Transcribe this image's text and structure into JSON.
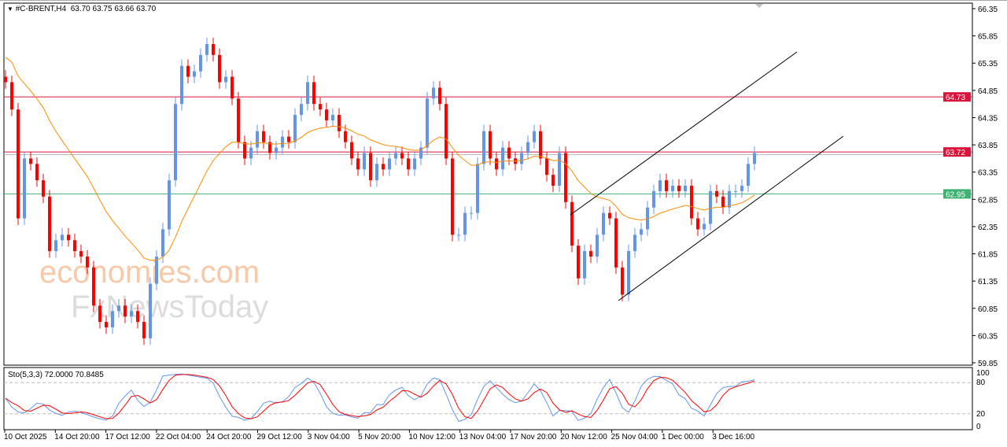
{
  "header": {
    "symbol_line": "#C-BRENT,H4  63.70 63.75 63.66 63.70",
    "dropdown_icon": "triangle-down-icon"
  },
  "watermark": {
    "line1": "economies.com",
    "line2": "FxNewsToday"
  },
  "colors": {
    "bull": "#6495ED",
    "bear": "#FF0000",
    "ma": "#FF8C00",
    "level_red": "#DC143C",
    "level_green": "#3CB371",
    "trendline": "#000000"
  },
  "chart_data": [
    {
      "type": "candlestick",
      "title": "#C-BRENT,H4",
      "ohlc_current": {
        "open": 63.7,
        "high": 63.75,
        "low": 63.66,
        "close": 63.7
      },
      "ylim": [
        59.85,
        66.35
      ],
      "y_ticks": [
        "66.35",
        "65.85",
        "65.35",
        "64.85",
        "64.35",
        "63.85",
        "63.35",
        "62.85",
        "62.35",
        "61.85",
        "61.35",
        "60.85",
        "60.35",
        "59.85"
      ],
      "x_ticks": [
        "10 Oct 2025",
        "14 Oct 20:00",
        "17 Oct 12:00",
        "22 Oct 04:00",
        "24 Oct 20:00",
        "29 Oct 12:00",
        "3 Nov 04:00",
        "5 Nov 20:00",
        "10 Nov 12:00",
        "13 Nov 04:00",
        "17 Nov 20:00",
        "20 Nov 12:00",
        "25 Nov 04:00",
        "1 Dec 00:00",
        "3 Dec 16:00"
      ],
      "closes": [
        65.0,
        64.5,
        62.5,
        63.6,
        63.5,
        63.2,
        62.9,
        61.9,
        62.1,
        62.2,
        62.1,
        61.9,
        61.8,
        61.6,
        60.9,
        60.6,
        60.5,
        60.8,
        60.9,
        60.7,
        60.8,
        60.6,
        60.3,
        61.3,
        61.8,
        62.3,
        63.2,
        64.6,
        65.3,
        65.1,
        65.2,
        65.5,
        65.7,
        65.5,
        65.0,
        65.1,
        64.7,
        63.9,
        63.6,
        63.8,
        64.1,
        63.9,
        63.7,
        63.8,
        64.0,
        63.9,
        64.4,
        64.6,
        65.0,
        64.6,
        64.5,
        64.3,
        64.4,
        64.1,
        63.9,
        63.6,
        63.4,
        63.7,
        63.2,
        63.5,
        63.4,
        63.6,
        63.7,
        63.6,
        63.4,
        63.6,
        63.8,
        64.7,
        64.9,
        64.6,
        63.6,
        62.2,
        62.2,
        62.6,
        62.6,
        63.5,
        64.1,
        63.6,
        63.4,
        63.8,
        63.6,
        63.5,
        63.7,
        63.9,
        64.1,
        63.6,
        63.3,
        63.1,
        63.7,
        62.8,
        62.0,
        61.4,
        61.9,
        61.8,
        62.2,
        62.6,
        62.5,
        61.6,
        61.1,
        61.9,
        62.2,
        62.3,
        62.7,
        63.0,
        63.2,
        63.0,
        63.1,
        63.0,
        63.1,
        62.5,
        62.3,
        62.4,
        63.0,
        62.9,
        62.7,
        63.0,
        63.0,
        63.1,
        63.5,
        63.7
      ],
      "levels": [
        {
          "label": "64.73",
          "value": 64.73,
          "color": "#DC143C"
        },
        {
          "label": "63.72",
          "value": 63.72,
          "color": "#DC143C"
        },
        {
          "label": "62.95",
          "value": 62.95,
          "color": "#3CB371"
        }
      ],
      "moving_average": {
        "color": "#FF8C00"
      },
      "grid": false
    },
    {
      "type": "line",
      "title": "Sto(5,3,3) 72.0000 70.8485",
      "ylim": [
        0,
        100
      ],
      "y_ticks": [
        "100",
        "80",
        "20",
        "0"
      ],
      "levels": [
        80,
        20
      ],
      "series_colors": {
        "main": "#6495ED",
        "signal": "#FF0000"
      }
    }
  ]
}
